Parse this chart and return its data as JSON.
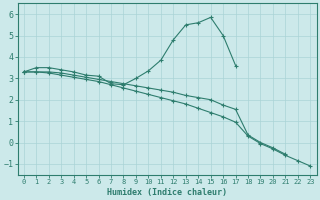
{
  "x": [
    0,
    1,
    2,
    3,
    4,
    5,
    6,
    7,
    8,
    9,
    10,
    11,
    12,
    13,
    14,
    15,
    16,
    17,
    18,
    19,
    20,
    21,
    22,
    23
  ],
  "line_max": [
    3.3,
    3.5,
    3.5,
    3.4,
    3.3,
    3.15,
    3.1,
    2.75,
    2.7,
    3.0,
    3.35,
    3.85,
    4.8,
    5.5,
    5.6,
    5.85,
    5.0,
    3.6,
    null,
    null,
    null,
    null,
    null,
    null
  ],
  "line_mean": [
    3.3,
    3.3,
    3.3,
    3.25,
    3.15,
    3.05,
    2.95,
    2.85,
    2.75,
    2.65,
    2.55,
    2.45,
    2.35,
    2.2,
    2.1,
    2.0,
    1.75,
    1.55,
    0.35,
    0.0,
    -0.25,
    -0.55,
    null,
    null
  ],
  "line_min": [
    3.3,
    3.3,
    3.25,
    3.15,
    3.05,
    2.95,
    2.85,
    2.7,
    2.55,
    2.4,
    2.25,
    2.1,
    1.95,
    1.8,
    1.6,
    1.4,
    1.2,
    0.95,
    0.3,
    -0.05,
    -0.3,
    -0.6,
    -0.85,
    -1.1
  ],
  "line_color": "#2e7d6e",
  "bg_color": "#cce9ea",
  "grid_color": "#aad4d6",
  "xlabel": "Humidex (Indice chaleur)",
  "ylim": [
    -1.5,
    6.5
  ],
  "xlim": [
    -0.5,
    23.5
  ],
  "yticks": [
    -1,
    0,
    1,
    2,
    3,
    4,
    5,
    6
  ],
  "xticks": [
    0,
    1,
    2,
    3,
    4,
    5,
    6,
    7,
    8,
    9,
    10,
    11,
    12,
    13,
    14,
    15,
    16,
    17,
    18,
    19,
    20,
    21,
    22,
    23
  ]
}
